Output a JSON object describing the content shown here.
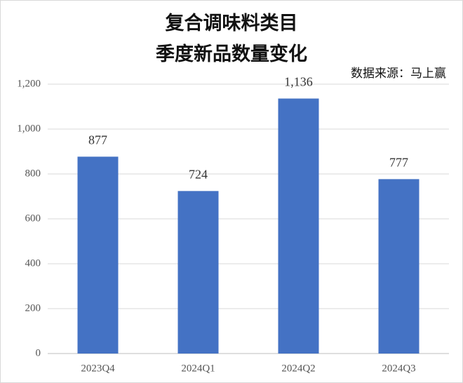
{
  "chart_data": {
    "type": "bar",
    "title": [
      "复合调味料类目",
      "季度新品数量变化"
    ],
    "source": "数据来源：马上赢",
    "categories": [
      "2023Q4",
      "2024Q1",
      "2024Q2",
      "2024Q3"
    ],
    "values": [
      877,
      724,
      1136,
      777
    ],
    "value_labels": [
      "877",
      "724",
      "1,136",
      "777"
    ],
    "color": "#4472c4",
    "ylim": [
      0,
      1200
    ],
    "yticks": [
      0,
      200,
      400,
      600,
      800,
      {
        "value": 1000,
        "label": "1,000"
      },
      {
        "value": 1200,
        "label": "1,200"
      }
    ],
    "grid": true
  }
}
